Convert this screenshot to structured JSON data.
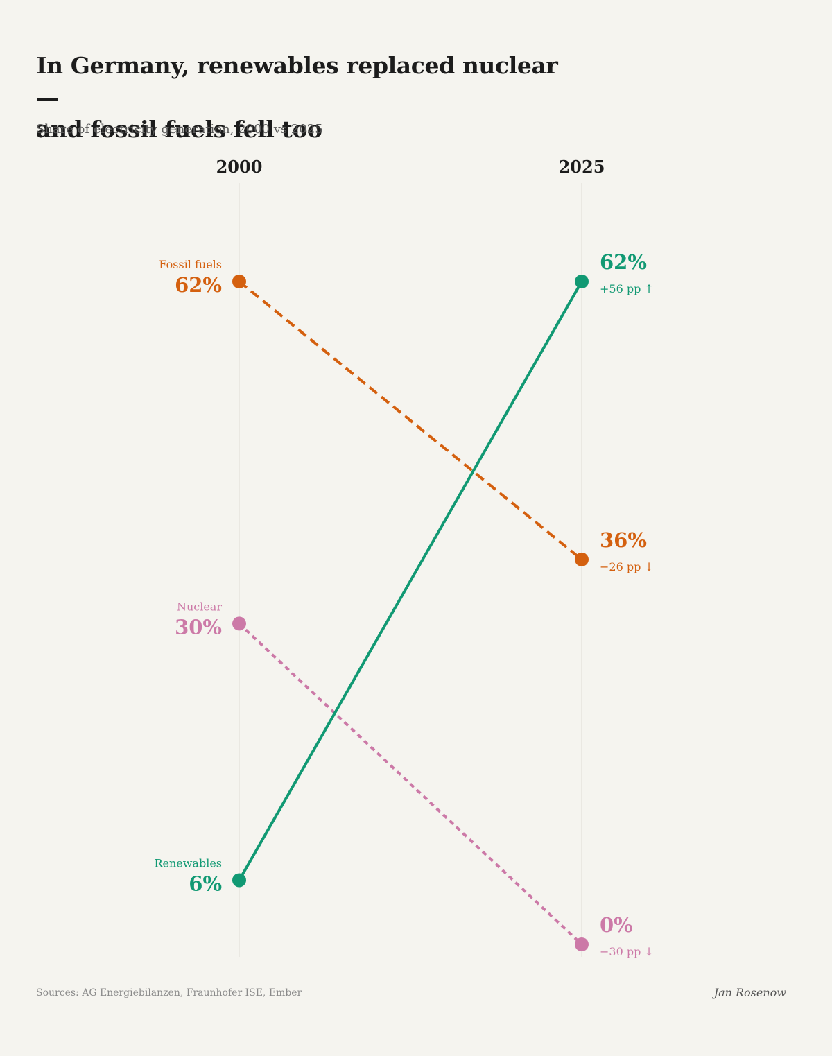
{
  "title_lines": [
    "In Germany, renewables replaced nuclear —",
    "and fossil fuels fell too"
  ],
  "subtitle": "Share of electricity generation, 2000 vs 2025",
  "footer": {
    "source": "Sources: AG Energiebilanzen, Fraunhofer ISE, Ember",
    "author": "Jan Rosenow"
  },
  "chart_data": {
    "type": "line",
    "subtype": "slope",
    "x": [
      "2000",
      "2025"
    ],
    "ylabel": "",
    "ylim": [
      0,
      62
    ],
    "grid": false,
    "series": [
      {
        "name": "Fossil fuels",
        "values": [
          62,
          36
        ],
        "start_label": "62%",
        "end_label": "36%",
        "change_label": "−26 pp ↓",
        "color": "#d4600f",
        "line_style": "dashed"
      },
      {
        "name": "Nuclear",
        "values": [
          30,
          0
        ],
        "start_label": "30%",
        "end_label": "0%",
        "change_label": "−30 pp ↓",
        "color": "#cc79a7",
        "line_style": "dotted"
      },
      {
        "name": "Renewables",
        "values": [
          6,
          62
        ],
        "start_label": "6%",
        "end_label": "62%",
        "change_label": "+56 pp ↑",
        "color": "#119973",
        "line_style": "solid"
      }
    ]
  }
}
